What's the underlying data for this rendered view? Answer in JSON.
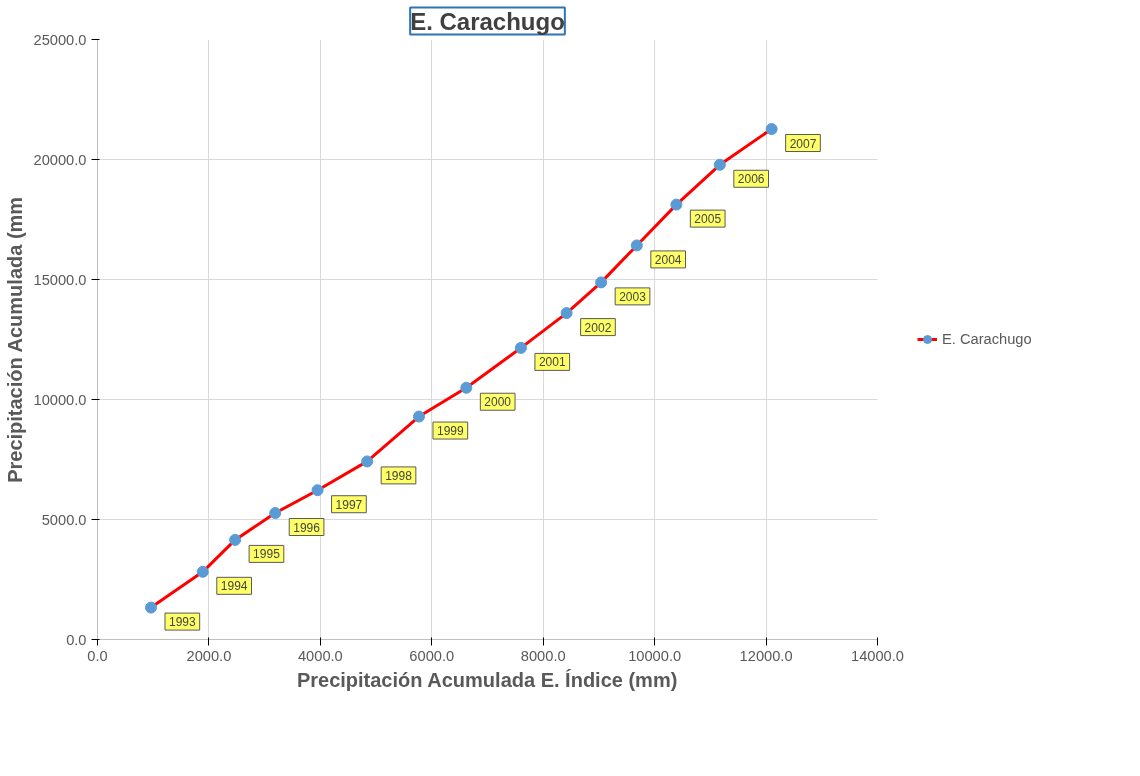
{
  "chart_data": {
    "type": "line",
    "title": "E. Carachugo",
    "xlabel": "Precipitación Acumulada E. Índice (mm)",
    "ylabel": "Precipitación Acumulada (mm",
    "x": [
      960,
      1890,
      2470,
      3190,
      3950,
      4840,
      5770,
      6620,
      7600,
      8420,
      9040,
      9680,
      10390,
      11170,
      12100
    ],
    "series": [
      {
        "name": "E. Carachugo",
        "color": "#ff0000",
        "colors": [
          "#5b9bd5",
          "#5b9bd5",
          "#5b9bd5",
          "#5b9bd5",
          "#5b9bd5",
          "#5b9bd5",
          "#5b9bd5",
          "#5b9bd5",
          "#5b9bd5",
          "#5b9bd5",
          "#5b9bd5",
          "#5b9bd5",
          "#5b9bd5",
          "#5b9bd5",
          "#5b9bd5"
        ],
        "values": [
          1330,
          2820,
          4150,
          5270,
          6220,
          7420,
          9290,
          10490,
          12150,
          13600,
          14880,
          16420,
          18120,
          19780,
          21270
        ]
      }
    ],
    "marker": "circle",
    "line_style": "solid",
    "xlim": [
      0,
      14000
    ],
    "xticks": [
      {
        "value": 0,
        "label": "0.0"
      },
      {
        "value": 2000,
        "label": "2000.0"
      },
      {
        "value": 4000,
        "label": "4000.0"
      },
      {
        "value": 6000,
        "label": "6000.0"
      },
      {
        "value": 8000,
        "label": "8000.0"
      },
      {
        "value": 10000,
        "label": "10000.0"
      },
      {
        "value": 12000,
        "label": "12000.0"
      },
      {
        "value": 14000,
        "label": "14000.0"
      }
    ],
    "ylim": [
      0,
      25000
    ],
    "yticks": [
      {
        "value": 0,
        "label": "0.0"
      },
      {
        "value": 5000,
        "label": "5000.0"
      },
      {
        "value": 10000,
        "label": "10000.0"
      },
      {
        "value": 15000,
        "label": "15000.0"
      },
      {
        "value": 20000,
        "label": "20000.0"
      },
      {
        "value": 25000,
        "label": "25000.0"
      }
    ],
    "grid": true,
    "legend": "right",
    "annotations": [
      {
        "text": "1993",
        "x": 960,
        "y": 1330
      },
      {
        "text": "1994",
        "x": 1890,
        "y": 2820
      },
      {
        "text": "1995",
        "x": 2470,
        "y": 4150
      },
      {
        "text": "1996",
        "x": 3190,
        "y": 5270
      },
      {
        "text": "1997",
        "x": 3950,
        "y": 6220
      },
      {
        "text": "1998",
        "x": 4840,
        "y": 7420
      },
      {
        "text": "1999",
        "x": 5770,
        "y": 9290
      },
      {
        "text": "2000",
        "x": 6620,
        "y": 10490
      },
      {
        "text": "2001",
        "x": 7600,
        "y": 12150
      },
      {
        "text": "2002",
        "x": 8420,
        "y": 13600
      },
      {
        "text": "2003",
        "x": 9040,
        "y": 14880
      },
      {
        "text": "2004",
        "x": 9680,
        "y": 16420
      },
      {
        "text": "2005",
        "x": 10390,
        "y": 18120
      },
      {
        "text": "2006",
        "x": 11170,
        "y": 19780
      },
      {
        "text": "2007",
        "x": 12100,
        "y": 21270
      }
    ]
  }
}
